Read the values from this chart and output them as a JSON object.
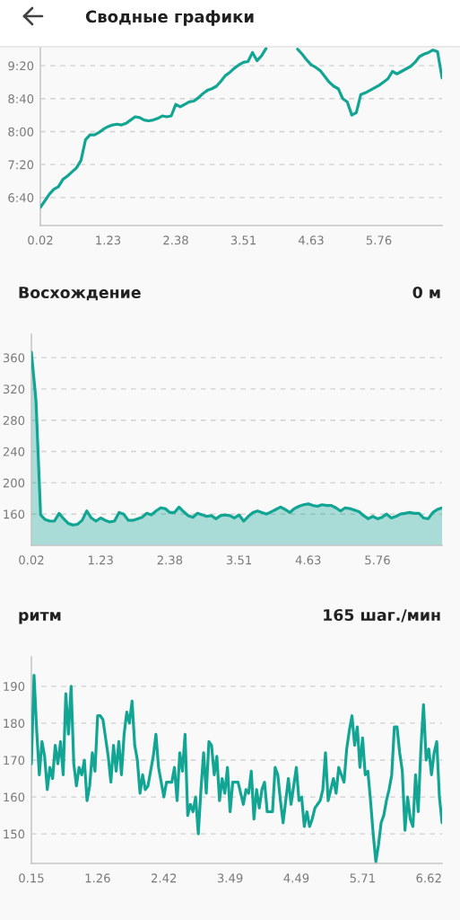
{
  "chart_data": [
    {
      "type": "line",
      "title": "Сводные графики",
      "categories": [
        "0.02",
        null,
        null,
        null,
        null,
        null,
        null,
        null,
        null,
        null,
        null,
        null,
        null,
        null,
        null,
        "1.23",
        null,
        null,
        null,
        null,
        null,
        null,
        null,
        null,
        null,
        null,
        null,
        null,
        null,
        null,
        "2.38",
        null,
        null,
        null,
        null,
        null,
        null,
        null,
        null,
        null,
        null,
        null,
        null,
        null,
        null,
        "3.51",
        null,
        null,
        null,
        null,
        null,
        null,
        null,
        null,
        null,
        null,
        null,
        null,
        null,
        null,
        "4.63",
        null,
        null,
        null,
        null,
        null,
        null,
        null,
        null,
        null,
        null,
        null,
        null,
        null,
        null,
        "5.76",
        null,
        null,
        null,
        null,
        null,
        null,
        null,
        null,
        null,
        null,
        null,
        null,
        null,
        null
      ],
      "series": [
        {
          "color": "#13a594",
          "values": [
            388,
            396,
            404,
            410,
            413,
            422,
            426,
            431,
            436,
            445,
            470,
            476,
            476,
            479,
            483,
            486,
            488,
            489,
            488,
            490,
            494,
            498,
            497,
            494,
            493,
            494,
            496,
            499,
            498,
            499,
            513,
            510,
            513,
            516,
            517,
            521,
            526,
            530,
            532,
            535,
            541,
            548,
            552,
            557,
            561,
            564,
            565,
            576,
            566,
            572,
            581,
            null,
            null,
            null,
            null,
            null,
            null,
            580,
            574,
            567,
            561,
            558,
            554,
            547,
            540,
            535,
            532,
            520,
            516,
            500,
            503,
            525,
            527,
            530,
            533,
            536,
            540,
            544,
            553,
            550,
            553,
            556,
            559,
            564,
            571,
            574,
            576,
            579,
            577,
            545
          ]
        }
      ],
      "ylim": [
        366,
        583
      ],
      "yticks": [
        {
          "value": 400,
          "label": "6:40"
        },
        {
          "value": 440,
          "label": "7:20"
        },
        {
          "value": 480,
          "label": "8:00"
        },
        {
          "value": 520,
          "label": "8:40"
        },
        {
          "value": 560,
          "label": "9:20"
        }
      ],
      "grid": "y"
    },
    {
      "type": "area",
      "title": "Восхождение",
      "subtitle": "0 м",
      "categories": [
        "0.02",
        null,
        null,
        null,
        null,
        null,
        null,
        null,
        null,
        null,
        null,
        null,
        null,
        null,
        null,
        "1.23",
        null,
        null,
        null,
        null,
        null,
        null,
        null,
        null,
        null,
        null,
        null,
        null,
        null,
        null,
        "2.38",
        null,
        null,
        null,
        null,
        null,
        null,
        null,
        null,
        null,
        null,
        null,
        null,
        null,
        null,
        "3.51",
        null,
        null,
        null,
        null,
        null,
        null,
        null,
        null,
        null,
        null,
        null,
        null,
        null,
        null,
        "4.63",
        null,
        null,
        null,
        null,
        null,
        null,
        null,
        null,
        null,
        null,
        null,
        null,
        null,
        null,
        "5.76",
        null,
        null,
        null,
        null,
        null,
        null,
        null,
        null,
        null,
        null,
        null,
        null,
        null,
        null
      ],
      "series": [
        {
          "color": "#13a594",
          "values": [
            367,
            305,
            159,
            153,
            151,
            151,
            161,
            154,
            148,
            146,
            147,
            152,
            164,
            155,
            151,
            155,
            152,
            150,
            151,
            162,
            160,
            152,
            152,
            154,
            156,
            161,
            159,
            164,
            168,
            167,
            162,
            162,
            169,
            163,
            158,
            156,
            161,
            159,
            157,
            158,
            154,
            158,
            159,
            158,
            155,
            159,
            151,
            157,
            162,
            164,
            162,
            160,
            163,
            166,
            169,
            166,
            162,
            167,
            170,
            172,
            173,
            171,
            170,
            172,
            171,
            171,
            168,
            164,
            168,
            167,
            165,
            163,
            158,
            154,
            157,
            154,
            156,
            160,
            155,
            157,
            160,
            161,
            162,
            161,
            161,
            155,
            154,
            162,
            166,
            168
          ]
        }
      ],
      "ylim": [
        120,
        390
      ],
      "yticks": [
        160,
        200,
        240,
        280,
        320,
        360
      ],
      "grid": "y"
    },
    {
      "type": "line",
      "title": "ритм",
      "subtitle": "165 шаг./мин",
      "categories": [
        "0.15",
        null,
        null,
        null,
        null,
        null,
        null,
        null,
        null,
        null,
        null,
        null,
        null,
        null,
        null,
        null,
        null,
        null,
        null,
        null,
        null,
        null,
        null,
        null,
        null,
        "1.26",
        null,
        null,
        null,
        null,
        null,
        null,
        null,
        null,
        null,
        null,
        null,
        null,
        null,
        null,
        null,
        null,
        null,
        null,
        null,
        null,
        null,
        null,
        null,
        null,
        "2.42",
        null,
        null,
        null,
        null,
        null,
        null,
        null,
        null,
        null,
        null,
        null,
        null,
        null,
        null,
        null,
        null,
        null,
        null,
        null,
        null,
        null,
        null,
        null,
        null,
        "3.49",
        null,
        null,
        null,
        null,
        null,
        null,
        null,
        null,
        null,
        null,
        null,
        null,
        null,
        null,
        null,
        null,
        null,
        null,
        null,
        null,
        null,
        null,
        null,
        null,
        "4.49",
        null,
        null,
        null,
        null,
        null,
        null,
        null,
        null,
        null,
        null,
        null,
        null,
        null,
        null,
        null,
        null,
        null,
        null,
        null,
        null,
        null,
        null,
        null,
        null,
        "5.71",
        null,
        null,
        null,
        null,
        null,
        null,
        null,
        null,
        null,
        null,
        null,
        null,
        null,
        null,
        null,
        null,
        null,
        null,
        null,
        null,
        null,
        null,
        null,
        null,
        "6.62",
        null,
        null,
        null,
        null,
        null
      ],
      "series": [
        {
          "color": "#13a594",
          "values": [
            169,
            193,
            178,
            166,
            175,
            171,
            162,
            168,
            165,
            174,
            169,
            175,
            166,
            188,
            177,
            190,
            169,
            163,
            168,
            166,
            170,
            159,
            163,
            172,
            167,
            182,
            182,
            181,
            176,
            171,
            164,
            174,
            167,
            175,
            166,
            177,
            183,
            180,
            186,
            174,
            170,
            161,
            166,
            162,
            163,
            167,
            171,
            177,
            168,
            164,
            160,
            164,
            164,
            164,
            168,
            159,
            172,
            167,
            177,
            155,
            158,
            156,
            160,
            150,
            162,
            172,
            161,
            175,
            174,
            166,
            171,
            159,
            165,
            161,
            168,
            156,
            164,
            164,
            164,
            161,
            158,
            162,
            161,
            167,
            154,
            162,
            157,
            162,
            164,
            156,
            156,
            156,
            168,
            166,
            159,
            153,
            159,
            165,
            158,
            163,
            168,
            159,
            160,
            152,
            156,
            152,
            154,
            157,
            158,
            159,
            162,
            172,
            159,
            162,
            165,
            161,
            168,
            166,
            164,
            173,
            178,
            182,
            174,
            179,
            168,
            176,
            166,
            167,
            159,
            150,
            142.5,
            147,
            153,
            155,
            159,
            162,
            166,
            179,
            179,
            172,
            167,
            151,
            160,
            154,
            152,
            166,
            156,
            173,
            185,
            170,
            173,
            166,
            172,
            175,
            160,
            153
          ]
        }
      ],
      "ylim": [
        142,
        198
      ],
      "yticks": [
        150,
        160,
        170,
        180,
        190
      ],
      "grid": "y"
    }
  ]
}
